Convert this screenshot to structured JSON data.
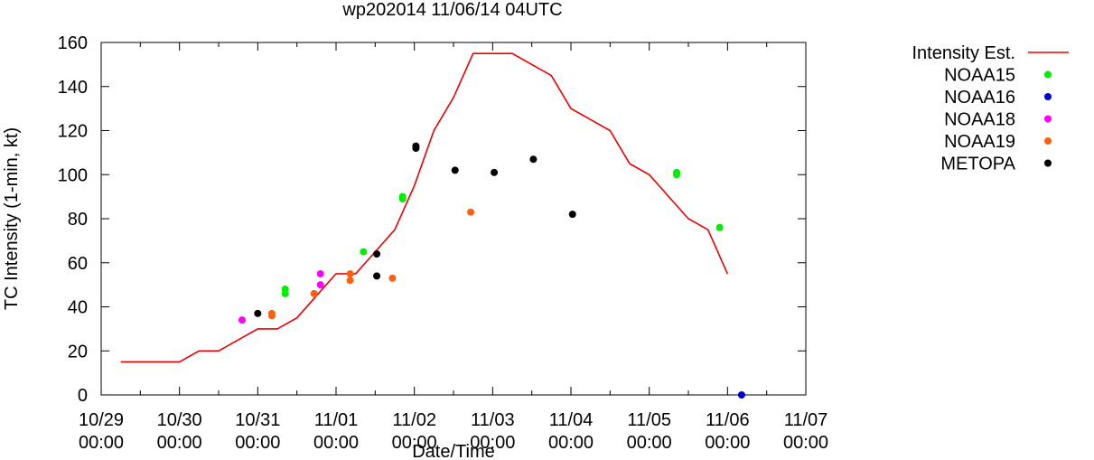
{
  "chart_data": {
    "type": "line+scatter",
    "title": "wp202014 11/06/14 04UTC",
    "xlabel": "Date/Time",
    "ylabel": "TC Intensity (1-min, kt)",
    "xlim_days": [
      0,
      9
    ],
    "ylim": [
      0,
      160
    ],
    "yticks": [
      0,
      20,
      40,
      60,
      80,
      100,
      120,
      140,
      160
    ],
    "xticks": [
      {
        "day": 0,
        "date": "10/29",
        "time": "00:00"
      },
      {
        "day": 1,
        "date": "10/30",
        "time": "00:00"
      },
      {
        "day": 2,
        "date": "10/31",
        "time": "00:00"
      },
      {
        "day": 3,
        "date": "11/01",
        "time": "00:00"
      },
      {
        "day": 4,
        "date": "11/02",
        "time": "00:00"
      },
      {
        "day": 5,
        "date": "11/03",
        "time": "00:00"
      },
      {
        "day": 6,
        "date": "11/04",
        "time": "00:00"
      },
      {
        "day": 7,
        "date": "11/05",
        "time": "00:00"
      },
      {
        "day": 8,
        "date": "11/06",
        "time": "00:00"
      },
      {
        "day": 9,
        "date": "11/07",
        "time": "00:00"
      }
    ],
    "legend_position": "outside-right",
    "series": [
      {
        "name": "Intensity Est.",
        "kind": "line",
        "color": "#ee0000",
        "points": [
          [
            0.25,
            15
          ],
          [
            1.0,
            15
          ],
          [
            1.25,
            20
          ],
          [
            1.5,
            20
          ],
          [
            1.75,
            25
          ],
          [
            2.0,
            30
          ],
          [
            2.25,
            30
          ],
          [
            2.5,
            35
          ],
          [
            2.75,
            45
          ],
          [
            3.0,
            55
          ],
          [
            3.25,
            55
          ],
          [
            3.5,
            65
          ],
          [
            3.75,
            75
          ],
          [
            4.0,
            95
          ],
          [
            4.25,
            120
          ],
          [
            4.5,
            135
          ],
          [
            4.75,
            155
          ],
          [
            5.0,
            155
          ],
          [
            5.25,
            155
          ],
          [
            5.5,
            150
          ],
          [
            5.75,
            145
          ],
          [
            6.0,
            130
          ],
          [
            6.25,
            125
          ],
          [
            6.5,
            120
          ],
          [
            6.75,
            105
          ],
          [
            7.0,
            100
          ],
          [
            7.25,
            90
          ],
          [
            7.5,
            80
          ],
          [
            7.75,
            75
          ],
          [
            8.0,
            55
          ]
        ]
      },
      {
        "name": "NOAA15",
        "kind": "scatter",
        "color": "#00ee00",
        "points": [
          [
            2.35,
            48
          ],
          [
            2.35,
            46
          ],
          [
            3.35,
            65
          ],
          [
            3.85,
            90
          ],
          [
            3.85,
            89
          ],
          [
            7.35,
            101
          ],
          [
            7.35,
            100
          ],
          [
            7.9,
            76
          ]
        ]
      },
      {
        "name": "NOAA16",
        "kind": "scatter",
        "color": "#0000cc",
        "points": [
          [
            8.18,
            0
          ]
        ]
      },
      {
        "name": "NOAA18",
        "kind": "scatter",
        "color": "#ff00ff",
        "points": [
          [
            1.8,
            34
          ],
          [
            2.8,
            55
          ],
          [
            2.8,
            50
          ]
        ]
      },
      {
        "name": "NOAA19",
        "kind": "scatter",
        "color": "#ff6010",
        "points": [
          [
            2.18,
            37
          ],
          [
            2.18,
            36
          ],
          [
            2.72,
            46
          ],
          [
            3.18,
            55
          ],
          [
            3.18,
            52
          ],
          [
            3.72,
            53
          ],
          [
            4.72,
            83
          ]
        ]
      },
      {
        "name": "METOPA",
        "kind": "scatter",
        "color": "#000000",
        "points": [
          [
            2.0,
            37
          ],
          [
            3.52,
            64
          ],
          [
            3.52,
            54
          ],
          [
            4.02,
            113
          ],
          [
            4.02,
            112
          ],
          [
            4.52,
            102
          ],
          [
            5.02,
            101
          ],
          [
            5.52,
            107
          ],
          [
            6.02,
            82
          ]
        ]
      }
    ]
  }
}
